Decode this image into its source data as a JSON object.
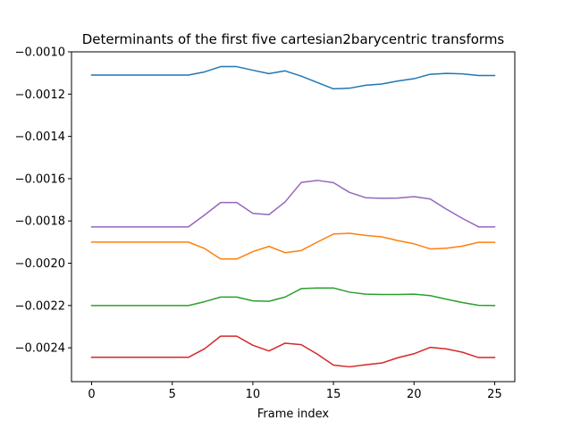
{
  "chart_data": {
    "type": "line",
    "title": "Determinants of the first five cartesian2barycentric transforms",
    "xlabel": "Frame index",
    "ylabel": "",
    "xlim": [
      -1.25,
      26.25
    ],
    "ylim": [
      -0.00256,
      -0.001
    ],
    "xticks": [
      0,
      5,
      10,
      15,
      20,
      25
    ],
    "yticks": [
      -0.001,
      -0.0012,
      -0.0014,
      -0.0016,
      -0.0018,
      -0.002,
      -0.0022,
      -0.0024
    ],
    "ytick_labels": [
      "−0.0010",
      "−0.0012",
      "−0.0014",
      "−0.0016",
      "−0.0018",
      "−0.0020",
      "−0.0022",
      "−0.0024"
    ],
    "grid": false,
    "x": [
      0,
      1,
      2,
      3,
      4,
      5,
      6,
      7,
      8,
      9,
      10,
      11,
      12,
      13,
      14,
      15,
      16,
      17,
      18,
      19,
      20,
      21,
      22,
      23,
      24,
      25
    ],
    "series": [
      {
        "color": "#1f77b4",
        "values": [
          -0.00111,
          -0.00111,
          -0.00111,
          -0.00111,
          -0.00111,
          -0.00111,
          -0.00111,
          -0.001095,
          -0.00107,
          -0.00107,
          -0.001087,
          -0.001103,
          -0.00109,
          -0.001115,
          -0.001145,
          -0.001175,
          -0.001172,
          -0.001158,
          -0.001152,
          -0.001138,
          -0.001127,
          -0.001106,
          -0.001102,
          -0.001104,
          -0.001112,
          -0.001112
        ]
      },
      {
        "color": "#ff7f0e",
        "values": [
          -0.0019,
          -0.0019,
          -0.0019,
          -0.0019,
          -0.0019,
          -0.0019,
          -0.0019,
          -0.00193,
          -0.00198,
          -0.00198,
          -0.001945,
          -0.00192,
          -0.00195,
          -0.00194,
          -0.0019,
          -0.001862,
          -0.001858,
          -0.001868,
          -0.001875,
          -0.001893,
          -0.001908,
          -0.001932,
          -0.001929,
          -0.001919,
          -0.001901,
          -0.001901
        ]
      },
      {
        "color": "#2ca02c",
        "values": [
          -0.0022,
          -0.0022,
          -0.0022,
          -0.0022,
          -0.0022,
          -0.0022,
          -0.0022,
          -0.002182,
          -0.00216,
          -0.00216,
          -0.002178,
          -0.00218,
          -0.00216,
          -0.00212,
          -0.002117,
          -0.002117,
          -0.002137,
          -0.002146,
          -0.002148,
          -0.002148,
          -0.002146,
          -0.002153,
          -0.00217,
          -0.002186,
          -0.002199,
          -0.0022
        ]
      },
      {
        "color": "#d62728",
        "values": [
          -0.002445,
          -0.002445,
          -0.002445,
          -0.002445,
          -0.002445,
          -0.002445,
          -0.002445,
          -0.002405,
          -0.002345,
          -0.002345,
          -0.002388,
          -0.002415,
          -0.002378,
          -0.002385,
          -0.00243,
          -0.002482,
          -0.00249,
          -0.00248,
          -0.002472,
          -0.002447,
          -0.002428,
          -0.002398,
          -0.002405,
          -0.002421,
          -0.002446,
          -0.002446
        ]
      },
      {
        "color": "#9467bd",
        "values": [
          -0.001828,
          -0.001828,
          -0.001828,
          -0.001828,
          -0.001828,
          -0.001828,
          -0.001828,
          -0.001772,
          -0.001713,
          -0.001713,
          -0.001764,
          -0.00177,
          -0.00171,
          -0.001618,
          -0.001608,
          -0.001619,
          -0.001665,
          -0.00169,
          -0.001693,
          -0.001692,
          -0.001685,
          -0.001696,
          -0.001744,
          -0.001788,
          -0.001828,
          -0.001828
        ]
      }
    ]
  }
}
